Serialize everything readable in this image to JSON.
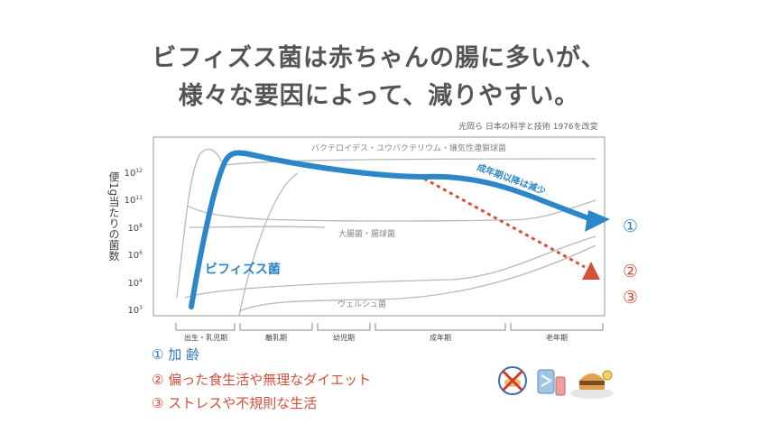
{
  "title": {
    "line1": "ビフィズス菌は赤ちゃんの腸に多いが、",
    "line2": "様々な要因によって、減りやすい。"
  },
  "source": "光岡ら 日本の科学と技術 1976を改変",
  "y_axis": {
    "label": "便1g当たりの菌数",
    "ticks": [
      {
        "base": "10",
        "exp": "12",
        "value": 12
      },
      {
        "base": "10",
        "exp": "11",
        "value": 11
      },
      {
        "base": "10",
        "exp": "8",
        "value": 8
      },
      {
        "base": "10",
        "exp": "6",
        "value": 6
      },
      {
        "base": "10",
        "exp": "4",
        "value": 4
      },
      {
        "base": "10",
        "exp": "3",
        "value": 3
      }
    ]
  },
  "curve_labels": {
    "bacteroides": "バクテロイデス・ユウバクテリウム・嫌気性連鎖球菌",
    "ecoli": "大腸菌・腸球菌",
    "welchii": "ウェルシュ菌",
    "bifido": "ビフィズス菌",
    "decline": "成年期以降は減少"
  },
  "age_periods": [
    "出生・乳児期",
    "離乳期",
    "幼児期",
    "成年期",
    "老年期"
  ],
  "markers": {
    "m1": "①",
    "m2": "②",
    "m3": "③"
  },
  "legend": {
    "item1": "① 加 齢",
    "item2": "② 偏った食生活や無理なダイエット",
    "item3": "③ ストレスや不規則な生活"
  },
  "icons": [
    "no-food-icon",
    "stress-icon",
    "junk-food-icon"
  ],
  "colors": {
    "bifido": "#2b87c8",
    "decline": "#d4503a",
    "other_curves": "#b0b0b0",
    "title": "#555555"
  }
}
